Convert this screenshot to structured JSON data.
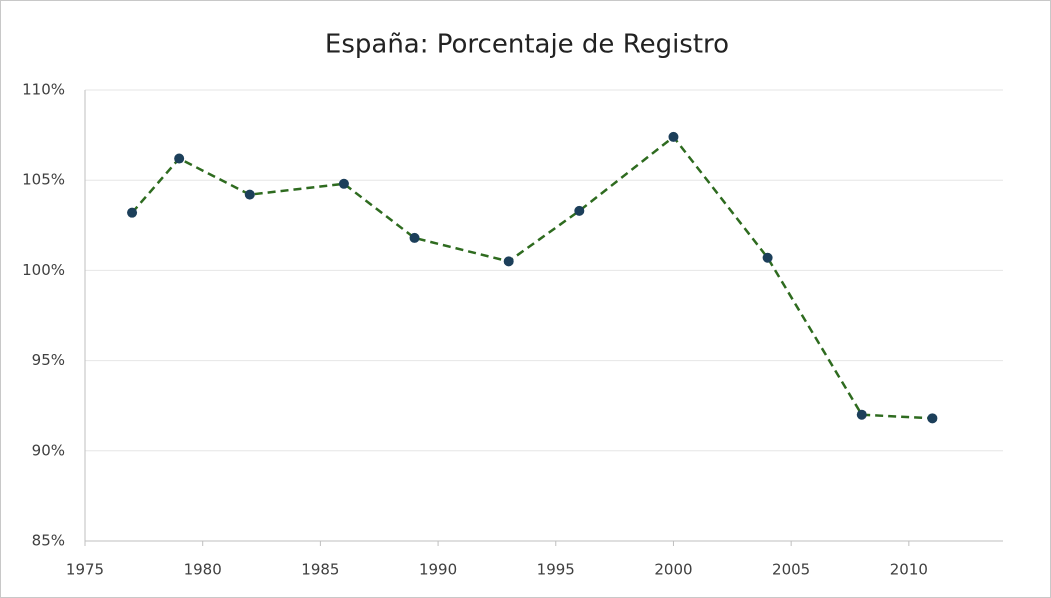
{
  "chart_data": {
    "type": "line",
    "title": "España: Porcentaje de Registro",
    "x": [
      1977,
      1979,
      1982,
      1986,
      1989,
      1993,
      1996,
      2000,
      2004,
      2008,
      2011
    ],
    "values": [
      103.2,
      106.2,
      104.2,
      104.8,
      101.8,
      100.5,
      103.3,
      107.4,
      100.7,
      92.0,
      91.8
    ],
    "color": "#2e6b1f",
    "marker_color": "#1c3f5a",
    "line_style": "dashed",
    "xlim": [
      1975,
      2014
    ],
    "xticks": [
      1975,
      1980,
      1985,
      1990,
      1995,
      2000,
      2005,
      2010
    ],
    "ylim": [
      85,
      110
    ],
    "yticks": [
      {
        "value": 85,
        "label": "85%"
      },
      {
        "value": 90,
        "label": "90%"
      },
      {
        "value": 95,
        "label": "95%"
      },
      {
        "value": 100,
        "label": "100%"
      },
      {
        "value": 105,
        "label": "105%"
      },
      {
        "value": 110,
        "label": "110%"
      }
    ],
    "grid": true
  }
}
